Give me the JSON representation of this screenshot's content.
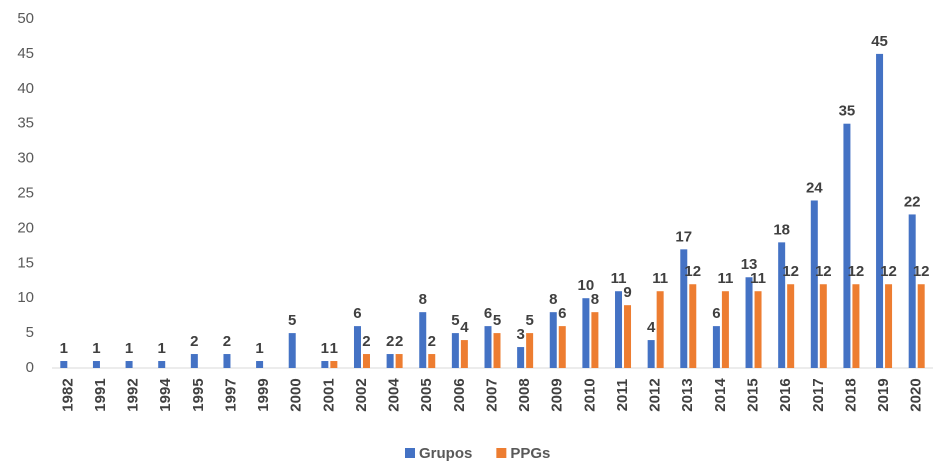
{
  "chart_data": {
    "type": "bar",
    "categories": [
      "1982",
      "1991",
      "1992",
      "1994",
      "1995",
      "1997",
      "1999",
      "2000",
      "2001",
      "2002",
      "2004",
      "2005",
      "2006",
      "2007",
      "2008",
      "2009",
      "2010",
      "2011",
      "2012",
      "2013",
      "2014",
      "2015",
      "2016",
      "2017",
      "2018",
      "2019",
      "2020"
    ],
    "series": [
      {
        "name": "Grupos",
        "color": "#4472c4",
        "values": [
          1,
          1,
          1,
          1,
          2,
          2,
          1,
          5,
          1,
          6,
          2,
          8,
          5,
          6,
          3,
          8,
          10,
          11,
          4,
          17,
          6,
          13,
          18,
          24,
          35,
          45,
          22
        ]
      },
      {
        "name": "PPGs",
        "color": "#ed7d31",
        "values": [
          null,
          null,
          null,
          null,
          null,
          null,
          null,
          null,
          1,
          2,
          2,
          2,
          4,
          5,
          5,
          6,
          8,
          9,
          11,
          12,
          11,
          11,
          12,
          12,
          12,
          12,
          12
        ]
      }
    ],
    "ylim": [
      0,
      50
    ],
    "yticks": [
      0,
      5,
      10,
      15,
      20,
      25,
      30,
      35,
      40,
      45,
      50
    ],
    "grid": false,
    "legend": "bottom"
  }
}
